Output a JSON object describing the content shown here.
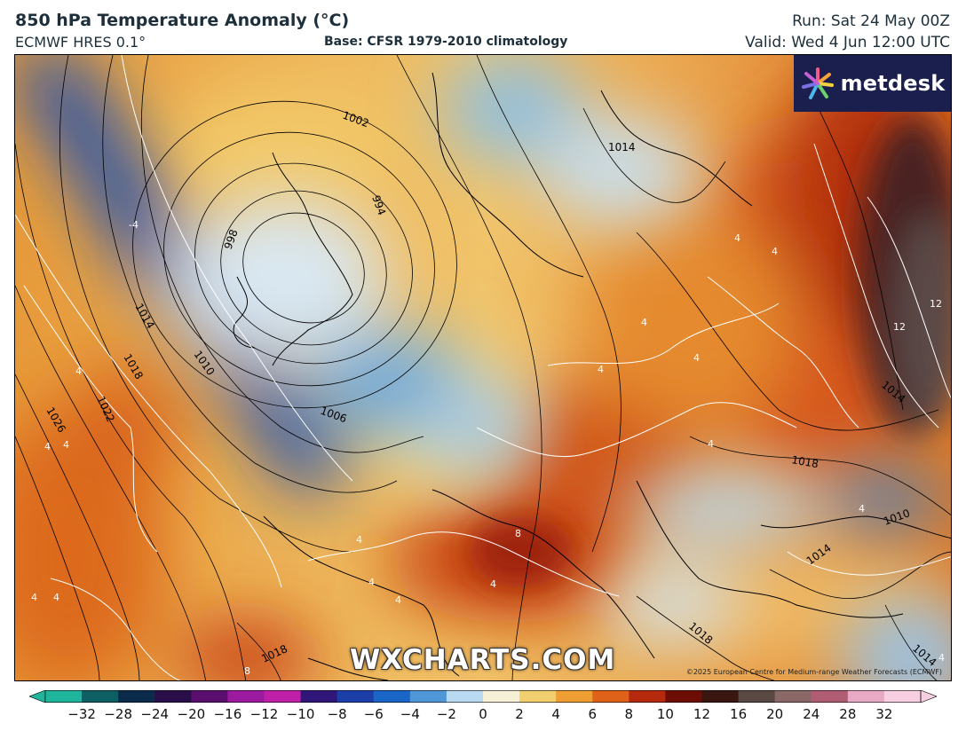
{
  "header": {
    "title": "850 hPa Temperature Anomaly (°C)",
    "model": "ECMWF HRES 0.1°",
    "base": "Base: CFSR 1979-2010 climatology",
    "run": "Run: Sat 24 May 00Z",
    "valid": "Valid: Wed 4 Jun 12:00 UTC"
  },
  "branding": {
    "logo_text": "metdesk",
    "logo_icon": "flower-burst-icon",
    "watermark": "WXCHARTS.COM",
    "copyright": "©2025 European Centre for Medium-range Weather Forecasts (ECMWF)"
  },
  "isobar_labels": [
    {
      "text": "1002"
    },
    {
      "text": "994"
    },
    {
      "text": "998"
    },
    {
      "text": "1014"
    },
    {
      "text": "1018"
    },
    {
      "text": "1022"
    },
    {
      "text": "1026"
    },
    {
      "text": "1010"
    },
    {
      "text": "1006"
    },
    {
      "text": "1014"
    },
    {
      "text": "1018"
    },
    {
      "text": "1014"
    },
    {
      "text": "1010"
    },
    {
      "text": "1014"
    },
    {
      "text": "1018"
    },
    {
      "text": "1018"
    },
    {
      "text": "1014"
    }
  ],
  "anomaly_labels": [
    {
      "text": "-4"
    },
    {
      "text": "4"
    },
    {
      "text": "4"
    },
    {
      "text": "4"
    },
    {
      "text": "4"
    },
    {
      "text": "4"
    },
    {
      "text": "4"
    },
    {
      "text": "4"
    },
    {
      "text": "4"
    },
    {
      "text": "4"
    },
    {
      "text": "8"
    },
    {
      "text": "4"
    },
    {
      "text": "4"
    },
    {
      "text": "4"
    },
    {
      "text": "4"
    },
    {
      "text": "12"
    },
    {
      "text": "12"
    },
    {
      "text": "8"
    },
    {
      "text": "4"
    },
    {
      "text": "4"
    },
    {
      "text": "4"
    },
    {
      "text": "4"
    }
  ],
  "colorbar": {
    "tick_labels": [
      "−32",
      "−28",
      "−24",
      "−20",
      "−16",
      "−12",
      "−10",
      "−8",
      "−6",
      "−4",
      "−2",
      "0",
      "2",
      "4",
      "6",
      "8",
      "10",
      "12",
      "16",
      "20",
      "24",
      "28",
      "32"
    ],
    "colors": [
      "#1fb59c",
      "#0d5f63",
      "#0a2b4a",
      "#2a0e4a",
      "#5a0f6e",
      "#9b1aa0",
      "#c01fa8",
      "#2f1678",
      "#1c3ea8",
      "#1a66c6",
      "#4f97d6",
      "#b9daf0",
      "#f5f0d6",
      "#f2cf6e",
      "#ee9e33",
      "#e0611a",
      "#b52a0c",
      "#6e0d06",
      "#3a1611",
      "#5a4845",
      "#8a6868",
      "#b05d74",
      "#e8a9c4",
      "#f7cfe0"
    ]
  }
}
